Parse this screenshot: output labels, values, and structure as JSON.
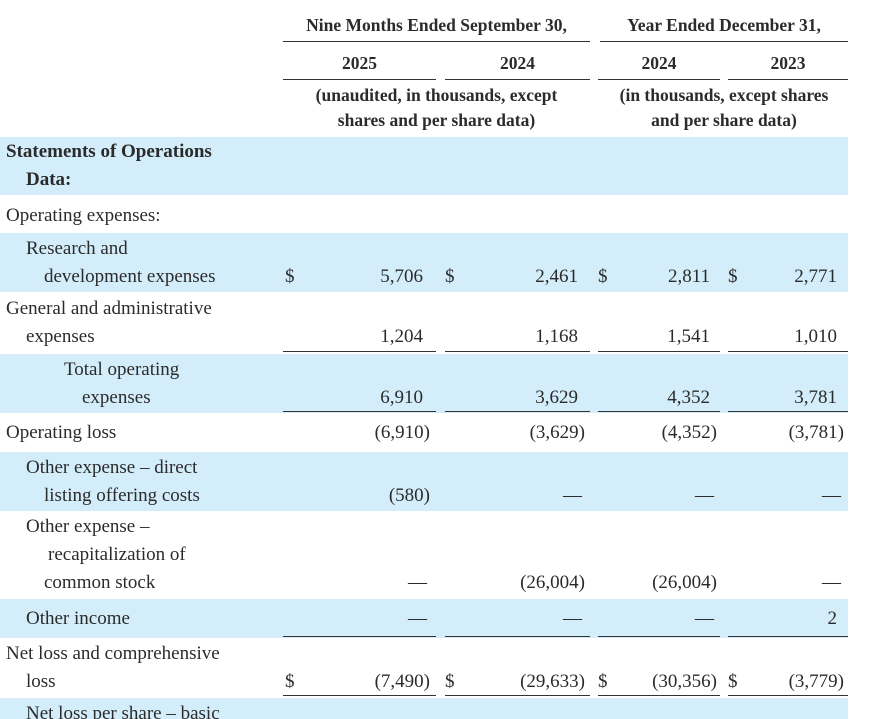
{
  "header": {
    "groups": [
      {
        "title": "Nine Months Ended September 30,",
        "columns": [
          "2025",
          "2024"
        ],
        "note": [
          "(unaudited, in thousands, except",
          "shares and per share data)"
        ]
      },
      {
        "title": "Year Ended December 31,",
        "columns": [
          "2024",
          "2023"
        ],
        "note": [
          "(in thousands, except shares",
          "and per share data)"
        ]
      }
    ]
  },
  "table": {
    "rows": [
      {
        "label": [
          "Statements of Operations",
          "Data:"
        ],
        "bold": true,
        "shaded": true
      },
      {
        "label": [
          "Operating expenses:"
        ],
        "shaded": false
      },
      {
        "label": [
          "Research and",
          "development expenses"
        ],
        "shaded": true,
        "currency": "$",
        "values": [
          "5,706",
          "2,461",
          "2,811",
          "2,771"
        ]
      },
      {
        "label": [
          "General and administrative",
          "expenses"
        ],
        "shaded": false,
        "values": [
          "1,204",
          "1,168",
          "1,541",
          "1,010"
        ],
        "rule": "single"
      },
      {
        "label": [
          "Total operating",
          "expenses"
        ],
        "shaded": true,
        "values": [
          "6,910",
          "3,629",
          "4,352",
          "3,781"
        ],
        "rule": "single"
      },
      {
        "label": [
          "Operating loss"
        ],
        "shaded": false,
        "values": [
          "(6,910)",
          "(3,629)",
          "(4,352)",
          "(3,781)"
        ]
      },
      {
        "label": [
          "Other expense – direct",
          "listing offering costs"
        ],
        "shaded": true,
        "values": [
          "(580)",
          "—",
          "—",
          "—"
        ]
      },
      {
        "label": [
          "Other expense –",
          "recapitalization of",
          "common stock"
        ],
        "shaded": false,
        "values": [
          "—",
          "(26,004)",
          "(26,004)",
          "—"
        ]
      },
      {
        "label": [
          "Other income"
        ],
        "shaded": true,
        "values": [
          "—",
          "—",
          "—",
          "2"
        ],
        "rule": "single"
      },
      {
        "label": [
          "Net loss and comprehensive",
          "loss"
        ],
        "shaded": false,
        "currency": "$",
        "values": [
          "(7,490)",
          "(29,633)",
          "(30,356)",
          "(3,779)"
        ],
        "rule": "double"
      },
      {
        "label": [
          "Net loss per share – basic"
        ],
        "shaded": true
      }
    ]
  }
}
